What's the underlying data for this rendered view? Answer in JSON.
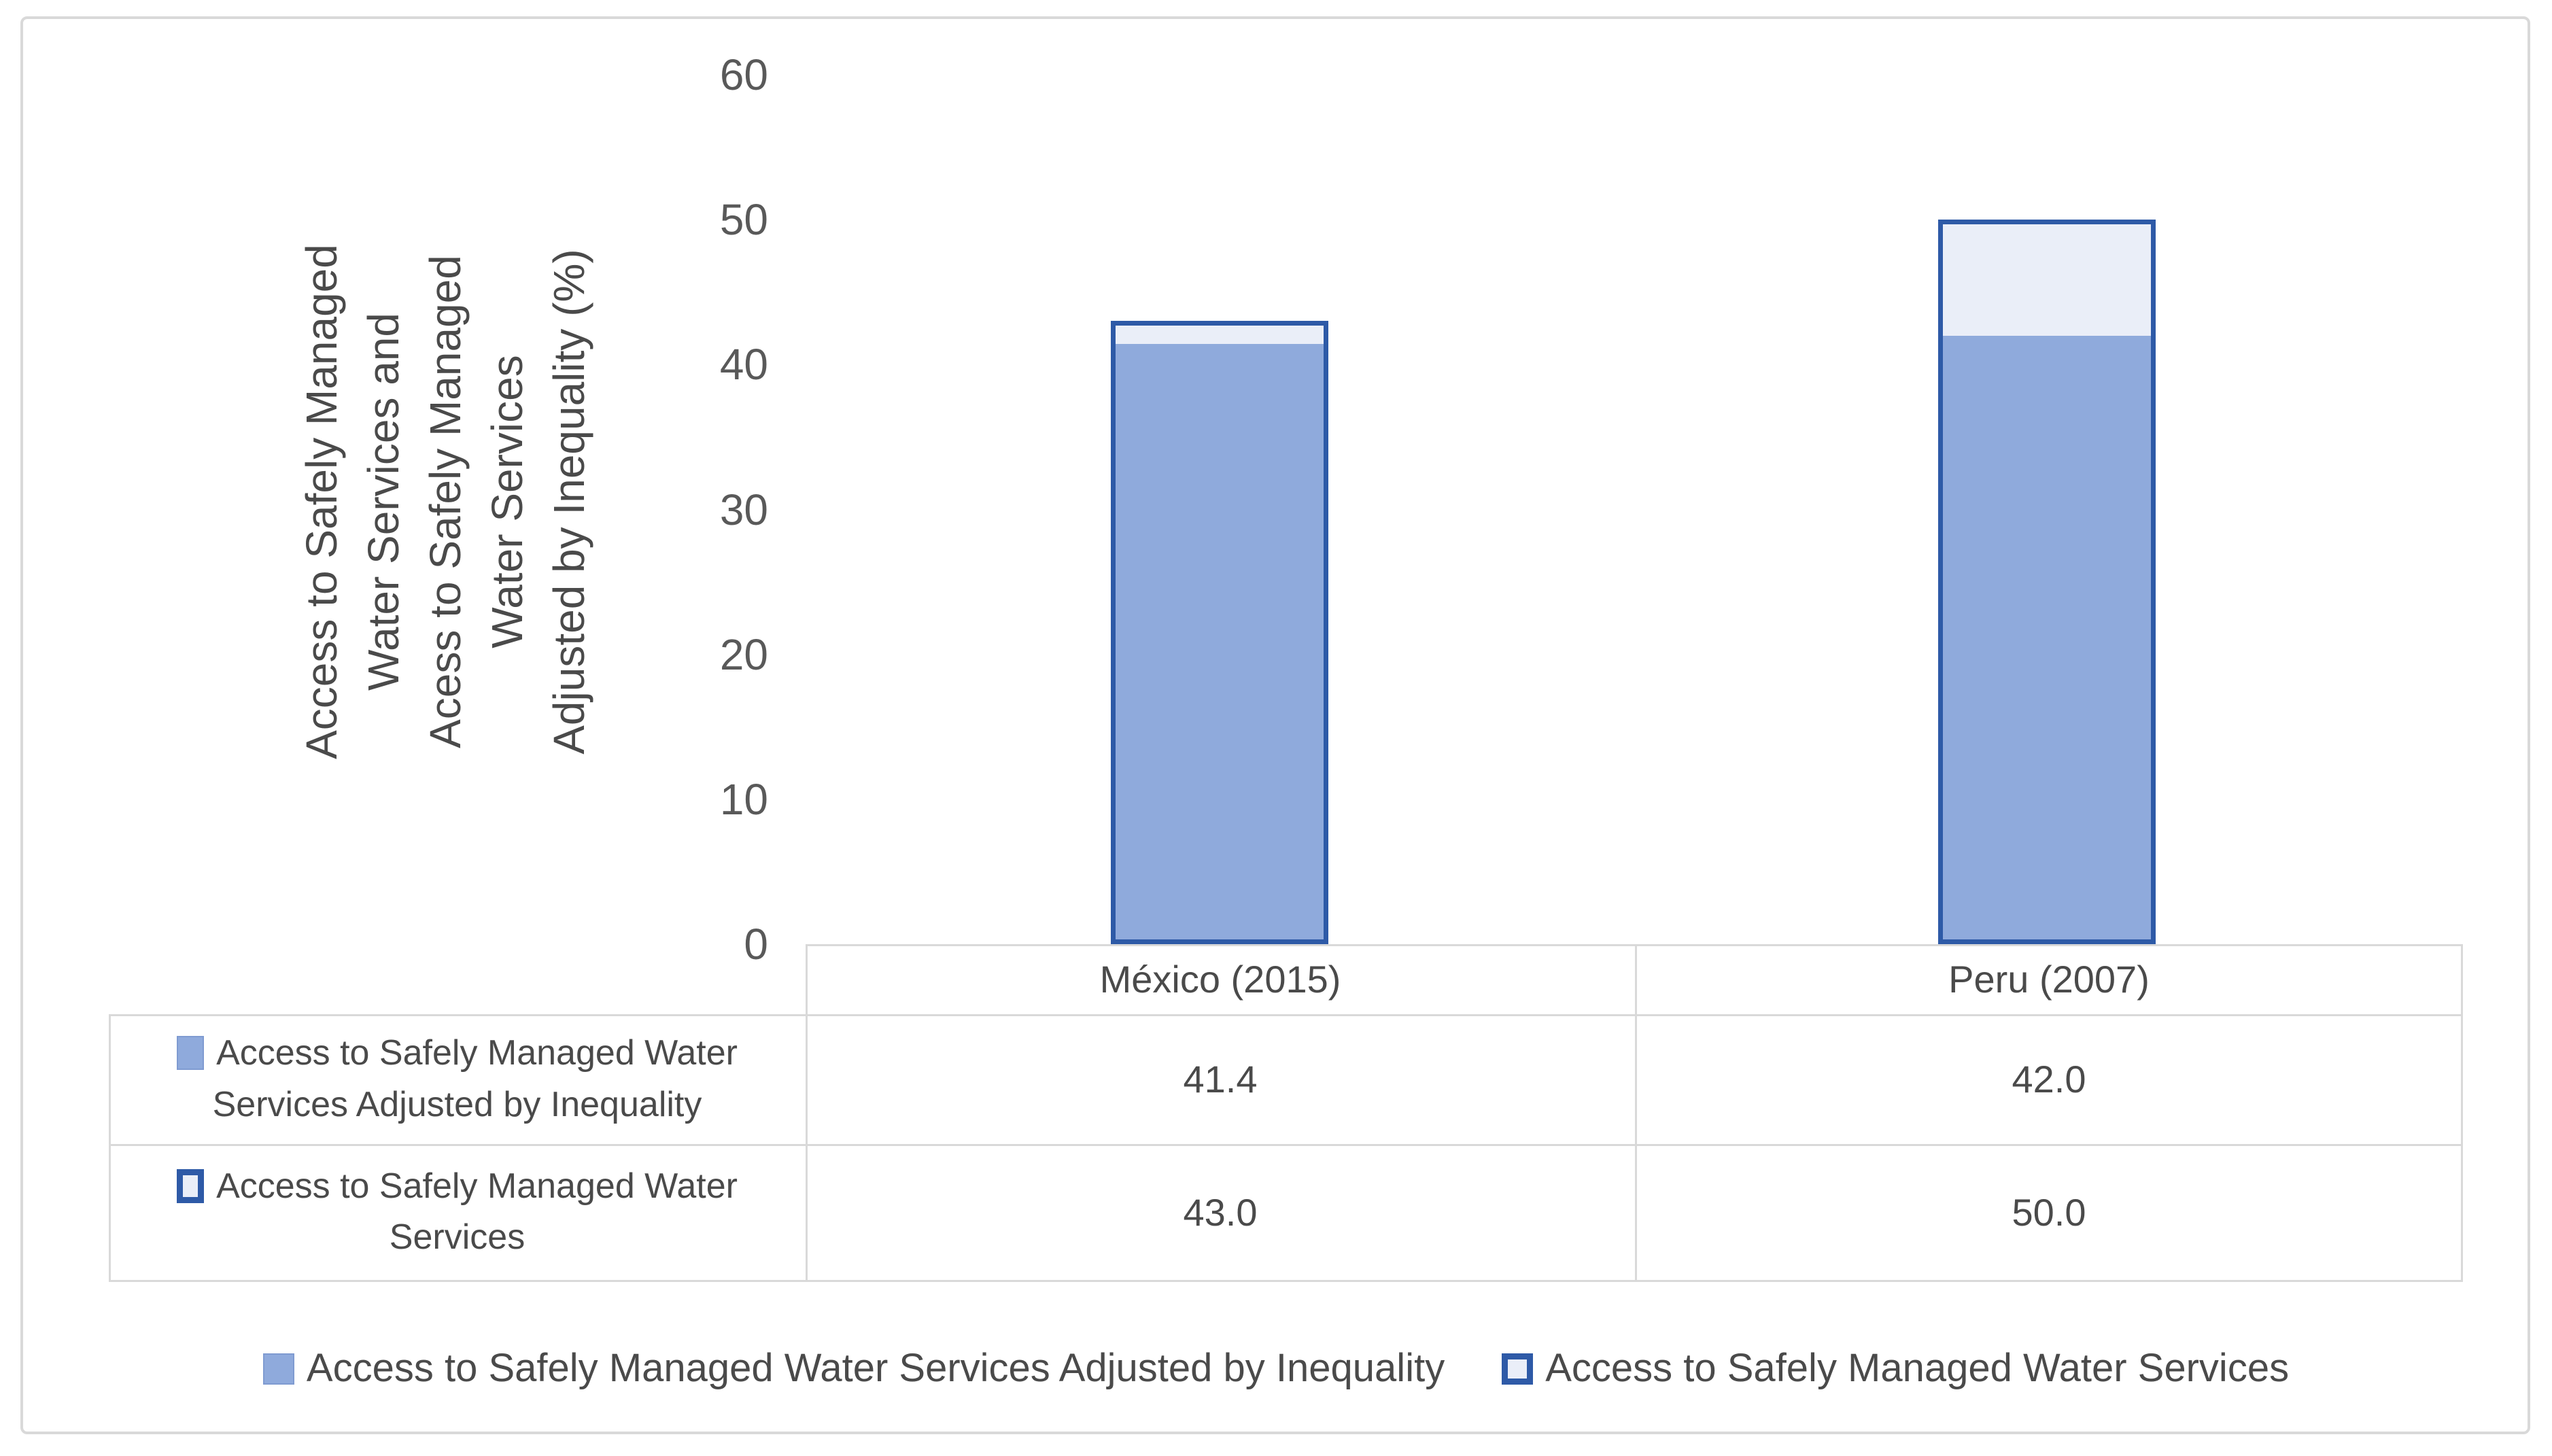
{
  "figure": {
    "background": "#FFFFFF",
    "border_color": "#D9D9D9"
  },
  "chart_data": {
    "type": "bar",
    "subtype": "overlapped-columns-with-data-table",
    "categories": [
      "México (2015)",
      "Peru (2007)"
    ],
    "series": [
      {
        "name": "Access to Safely Managed Water Services Adjusted by Inequality",
        "values": [
          41.4,
          42.0
        ],
        "marker": "filled"
      },
      {
        "name": "Access to Safely Managed Water Services",
        "values": [
          43.0,
          50.0
        ],
        "marker": "outlined"
      }
    ],
    "title": "",
    "xlabel": "",
    "ylabel_lines": [
      "Access to Safely Managed",
      "Water Services and",
      "Acess to Safely Managed",
      "Water Services",
      "Adjusted by Inequality (%)"
    ],
    "ylim": [
      0,
      60
    ],
    "yticks": [
      60,
      50,
      40,
      30,
      20,
      10,
      0
    ],
    "grid": false,
    "legend_position": "bottom",
    "colors": {
      "bar_fill": "#8FAADC",
      "bar_light_fill": "#EAEEF8",
      "bar_border": "#2E5AA7",
      "grid_line": "#D9D9D9"
    }
  },
  "data_table": {
    "col_headers": [
      "México (2015)",
      "Peru (2007)"
    ],
    "rows": [
      {
        "label": "Access to Safely Managed Water Services Adjusted by Inequality",
        "values": [
          "41.4",
          "42.0"
        ]
      },
      {
        "label": "Access to Safely Managed Water Services",
        "values": [
          "43.0",
          "50.0"
        ]
      }
    ]
  },
  "legend": {
    "items": [
      {
        "label": "Access to Safely Managed Water Services Adjusted by Inequality",
        "marker": "filled"
      },
      {
        "label": "Access to Safely Managed Water Services",
        "marker": "outlined"
      }
    ]
  }
}
